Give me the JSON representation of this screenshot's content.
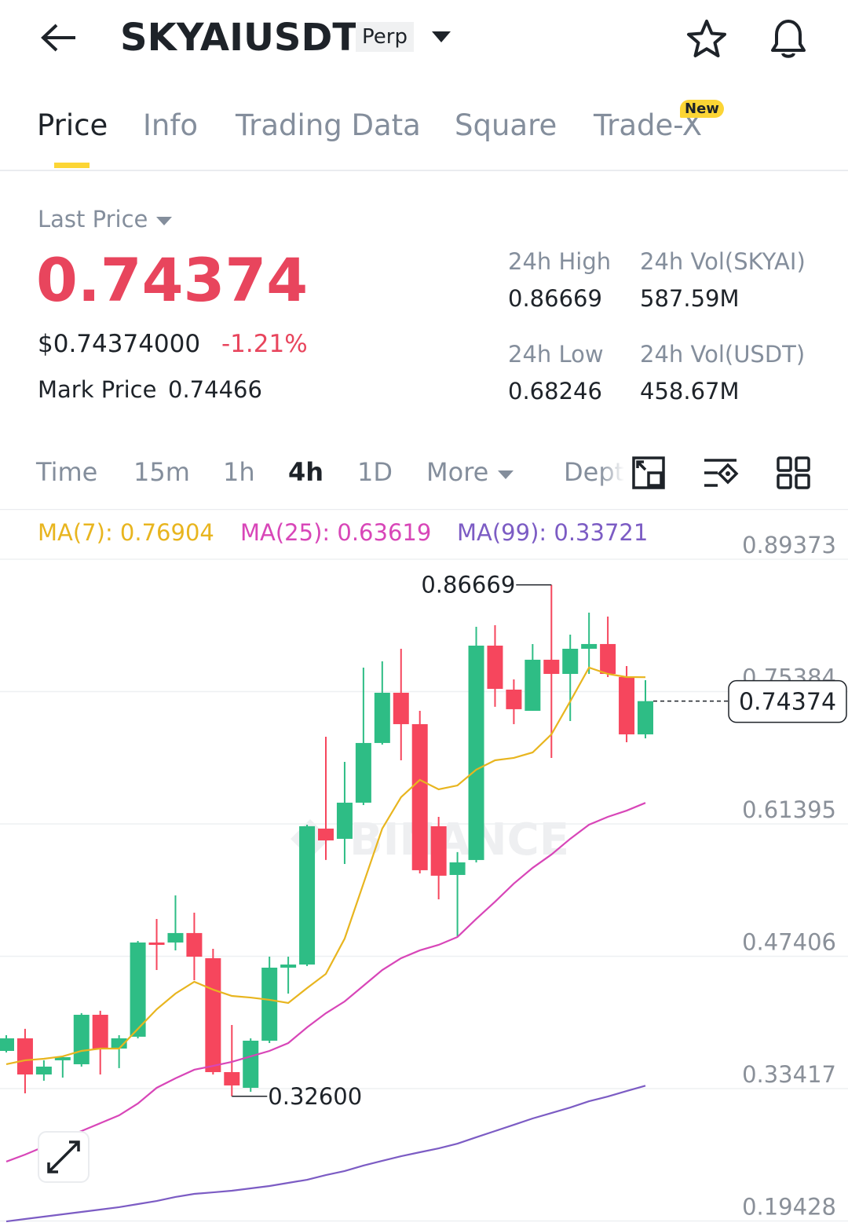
{
  "header": {
    "symbol": "SKYAIUSDT",
    "badge": "Perp"
  },
  "tabs": {
    "items": [
      "Price",
      "Info",
      "Trading Data",
      "Square",
      "Trade-X"
    ],
    "active": 0,
    "new_badge": "New"
  },
  "price": {
    "label": "Last Price",
    "last": "0.74374",
    "usd": "$0.74374000",
    "change": "-1.21%",
    "mark_label": "Mark Price",
    "mark": "0.74466",
    "stats": [
      {
        "label": "24h High",
        "value": "0.86669"
      },
      {
        "label": "24h Vol(SKYAI)",
        "value": "587.59M"
      },
      {
        "label": "24h Low",
        "value": "0.68246"
      },
      {
        "label": "24h Vol(USDT)",
        "value": "458.67M"
      }
    ]
  },
  "intervals": {
    "items": [
      "Time",
      "15m",
      "1h",
      "4h",
      "1D",
      "More",
      "Depth"
    ],
    "active": 3
  },
  "chart_data": {
    "type": "candlestick",
    "watermark": "BINANCE",
    "ylim": [
      0.1847,
      0.9369
    ],
    "yticks": [
      0.89373,
      0.75384,
      0.61395,
      0.47406,
      0.33417,
      0.19428
    ],
    "grid": true,
    "up_color": "#2ebd85",
    "down_color": "#f6465d",
    "open": [
      0.374,
      0.3873,
      0.3491,
      0.3641,
      0.3599,
      0.4122,
      0.3765,
      0.389,
      0.4886,
      0.4886,
      0.4986,
      0.472,
      0.3516,
      0.335,
      0.3848,
      0.462,
      0.4653,
      0.609,
      0.5982,
      0.6364,
      0.6995,
      0.7526,
      0.7194,
      0.6115,
      0.56,
      0.5758,
      0.8024,
      0.7559,
      0.7335,
      0.7875,
      0.7725,
      0.7991,
      0.8041,
      0.7692,
      0.7086
    ],
    "high": [
      0.3906,
      0.3973,
      0.3641,
      0.3682,
      0.4139,
      0.4164,
      0.3906,
      0.4902,
      0.5135,
      0.5384,
      0.5201,
      0.4819,
      0.4014,
      0.3873,
      0.4736,
      0.4736,
      0.6131,
      0.7061,
      0.6795,
      0.7792,
      0.7858,
      0.7991,
      0.7335,
      0.6214,
      0.5841,
      0.8223,
      0.824,
      0.7667,
      0.8041,
      0.86669,
      0.814,
      0.8373,
      0.8331,
      0.7808,
      0.7659
    ],
    "low": [
      0.3724,
      0.3292,
      0.3425,
      0.3458,
      0.3574,
      0.3491,
      0.3558,
      0.3873,
      0.4595,
      0.4803,
      0.4487,
      0.3491,
      0.326,
      0.3308,
      0.3823,
      0.4346,
      0.4637,
      0.5758,
      0.5716,
      0.6339,
      0.6978,
      0.6812,
      0.5616,
      0.5342,
      0.4952,
      0.5733,
      0.7377,
      0.7194,
      0.7335,
      0.6837,
      0.7227,
      0.7725,
      0.7692,
      0.7003,
      0.7044
    ],
    "close": [
      0.3873,
      0.3491,
      0.3574,
      0.3674,
      0.4122,
      0.3765,
      0.3873,
      0.4886,
      0.4861,
      0.4986,
      0.4736,
      0.3516,
      0.3375,
      0.3848,
      0.462,
      0.4653,
      0.6115,
      0.5965,
      0.6364,
      0.6995,
      0.7526,
      0.7194,
      0.565,
      0.5592,
      0.5733,
      0.8024,
      0.7567,
      0.7352,
      0.7875,
      0.7725,
      0.7991,
      0.8041,
      0.7725,
      0.7086,
      0.74374
    ],
    "series": [
      {
        "name": "MA(7): 0.76904",
        "color": "#e8b51f",
        "values": [
          0.3599,
          0.3641,
          0.3657,
          0.3682,
          0.374,
          0.3765,
          0.3765,
          0.3973,
          0.418,
          0.4346,
          0.4471,
          0.4388,
          0.4321,
          0.4304,
          0.428,
          0.4247,
          0.4404,
          0.4554,
          0.4927,
          0.5509,
          0.609,
          0.6422,
          0.6605,
          0.6505,
          0.6546,
          0.6713,
          0.6812,
          0.6837,
          0.6895,
          0.7086,
          0.7435,
          0.7792,
          0.7725,
          0.7692,
          0.76904
        ]
      },
      {
        "name": "MA(25): 0.63619",
        "color": "#d846b8",
        "values": [
          0.257,
          0.2644,
          0.2727,
          0.281,
          0.2893,
          0.2976,
          0.3059,
          0.3184,
          0.335,
          0.345,
          0.3541,
          0.3582,
          0.3624,
          0.3682,
          0.374,
          0.3823,
          0.3989,
          0.4138,
          0.4263,
          0.4429,
          0.4595,
          0.472,
          0.4803,
          0.4861,
          0.4944,
          0.5135,
          0.5317,
          0.5509,
          0.5675,
          0.5816,
          0.5982,
          0.6131,
          0.6214,
          0.628,
          0.63619
        ]
      },
      {
        "name": "MA(99): 0.33721",
        "color": "#7c5cc4",
        "values": [
          0.1938,
          0.1963,
          0.1988,
          0.2013,
          0.2038,
          0.2063,
          0.2088,
          0.2121,
          0.2154,
          0.2196,
          0.2229,
          0.2245,
          0.2262,
          0.2287,
          0.2312,
          0.2345,
          0.2378,
          0.2428,
          0.247,
          0.2528,
          0.2578,
          0.2627,
          0.2669,
          0.271,
          0.276,
          0.2827,
          0.2893,
          0.2959,
          0.3026,
          0.3084,
          0.3142,
          0.3208,
          0.3258,
          0.3316,
          0.33721
        ]
      }
    ],
    "high_label": 0.86669,
    "low_label": {
      "value": 0.326,
      "label": "0.32600"
    },
    "last_price": 0.74374
  }
}
